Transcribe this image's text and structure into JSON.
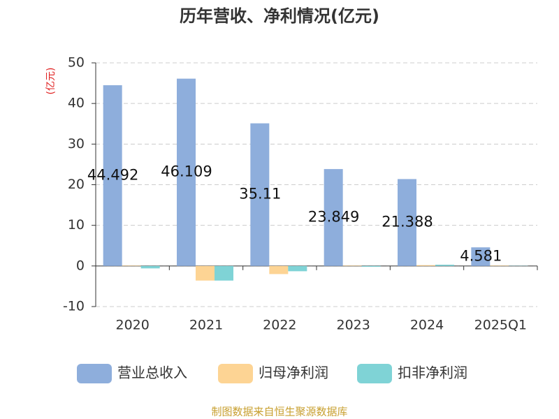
{
  "chart_data": {
    "type": "bar",
    "title": "历年营收、净利情况(亿元)",
    "y_label": "(亿元)",
    "categories": [
      "2020",
      "2021",
      "2022",
      "2023",
      "2024",
      "2025Q1"
    ],
    "series": [
      {
        "name": "营业总收入",
        "color": "#8eaedc",
        "values": [
          44.492,
          46.109,
          35.11,
          23.849,
          21.388,
          4.581
        ]
      },
      {
        "name": "归母净利润",
        "color": "#fdd494",
        "values": [
          0.1,
          -3.6,
          -2.0,
          0.1,
          0.2,
          0.1
        ]
      },
      {
        "name": "扣非净利润",
        "color": "#7fd3d6",
        "values": [
          -0.6,
          -3.6,
          -1.3,
          -0.2,
          0.3,
          0.05
        ]
      }
    ],
    "ylim": [
      -10,
      50
    ],
    "yticks": [
      -10,
      0,
      10,
      20,
      30,
      40,
      50
    ],
    "grid": true,
    "label_series": 0,
    "source": "制图数据来自恒生聚源数据库"
  }
}
